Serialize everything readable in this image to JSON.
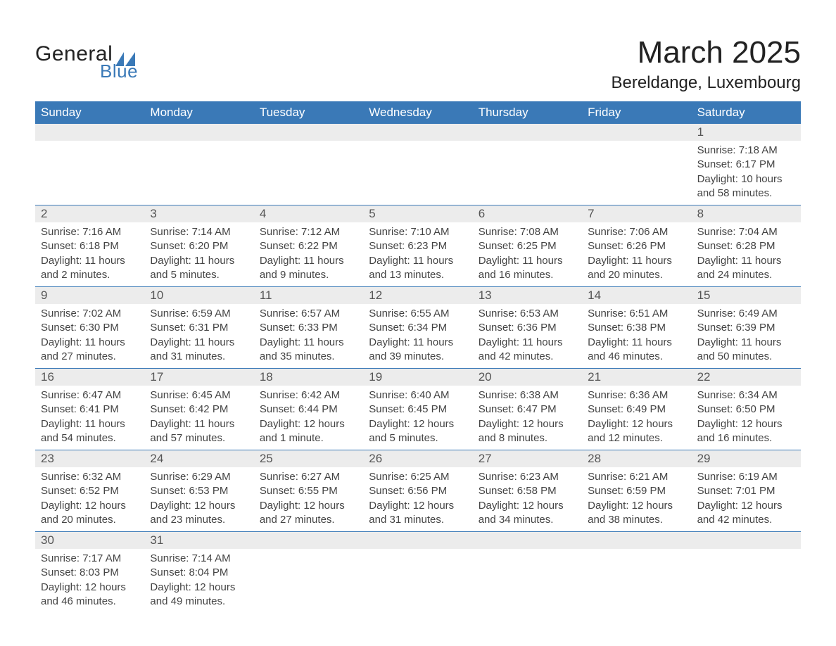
{
  "brand": {
    "text_general": "General",
    "text_blue": "Blue",
    "logo_color": "#3a79b7"
  },
  "title": {
    "month": "March 2025",
    "location": "Bereldange, Luxembourg",
    "month_fontsize": 44,
    "location_fontsize": 24
  },
  "colors": {
    "header_bg": "#3a79b7",
    "header_text": "#ffffff",
    "daynum_bg": "#ececec",
    "daynum_text": "#555555",
    "body_text": "#444444",
    "row_border": "#3a79b7",
    "page_bg": "#ffffff"
  },
  "layout": {
    "columns": 7,
    "weeks": 6
  },
  "weekdays": [
    "Sunday",
    "Monday",
    "Tuesday",
    "Wednesday",
    "Thursday",
    "Friday",
    "Saturday"
  ],
  "weeks": [
    {
      "daynums": [
        "",
        "",
        "",
        "",
        "",
        "",
        "1"
      ],
      "data": [
        {
          "sunrise": "",
          "sunset": "",
          "daylight": ""
        },
        {
          "sunrise": "",
          "sunset": "",
          "daylight": ""
        },
        {
          "sunrise": "",
          "sunset": "",
          "daylight": ""
        },
        {
          "sunrise": "",
          "sunset": "",
          "daylight": ""
        },
        {
          "sunrise": "",
          "sunset": "",
          "daylight": ""
        },
        {
          "sunrise": "",
          "sunset": "",
          "daylight": ""
        },
        {
          "sunrise": "Sunrise: 7:18 AM",
          "sunset": "Sunset: 6:17 PM",
          "daylight": "Daylight: 10 hours and 58 minutes."
        }
      ]
    },
    {
      "daynums": [
        "2",
        "3",
        "4",
        "5",
        "6",
        "7",
        "8"
      ],
      "data": [
        {
          "sunrise": "Sunrise: 7:16 AM",
          "sunset": "Sunset: 6:18 PM",
          "daylight": "Daylight: 11 hours and 2 minutes."
        },
        {
          "sunrise": "Sunrise: 7:14 AM",
          "sunset": "Sunset: 6:20 PM",
          "daylight": "Daylight: 11 hours and 5 minutes."
        },
        {
          "sunrise": "Sunrise: 7:12 AM",
          "sunset": "Sunset: 6:22 PM",
          "daylight": "Daylight: 11 hours and 9 minutes."
        },
        {
          "sunrise": "Sunrise: 7:10 AM",
          "sunset": "Sunset: 6:23 PM",
          "daylight": "Daylight: 11 hours and 13 minutes."
        },
        {
          "sunrise": "Sunrise: 7:08 AM",
          "sunset": "Sunset: 6:25 PM",
          "daylight": "Daylight: 11 hours and 16 minutes."
        },
        {
          "sunrise": "Sunrise: 7:06 AM",
          "sunset": "Sunset: 6:26 PM",
          "daylight": "Daylight: 11 hours and 20 minutes."
        },
        {
          "sunrise": "Sunrise: 7:04 AM",
          "sunset": "Sunset: 6:28 PM",
          "daylight": "Daylight: 11 hours and 24 minutes."
        }
      ]
    },
    {
      "daynums": [
        "9",
        "10",
        "11",
        "12",
        "13",
        "14",
        "15"
      ],
      "data": [
        {
          "sunrise": "Sunrise: 7:02 AM",
          "sunset": "Sunset: 6:30 PM",
          "daylight": "Daylight: 11 hours and 27 minutes."
        },
        {
          "sunrise": "Sunrise: 6:59 AM",
          "sunset": "Sunset: 6:31 PM",
          "daylight": "Daylight: 11 hours and 31 minutes."
        },
        {
          "sunrise": "Sunrise: 6:57 AM",
          "sunset": "Sunset: 6:33 PM",
          "daylight": "Daylight: 11 hours and 35 minutes."
        },
        {
          "sunrise": "Sunrise: 6:55 AM",
          "sunset": "Sunset: 6:34 PM",
          "daylight": "Daylight: 11 hours and 39 minutes."
        },
        {
          "sunrise": "Sunrise: 6:53 AM",
          "sunset": "Sunset: 6:36 PM",
          "daylight": "Daylight: 11 hours and 42 minutes."
        },
        {
          "sunrise": "Sunrise: 6:51 AM",
          "sunset": "Sunset: 6:38 PM",
          "daylight": "Daylight: 11 hours and 46 minutes."
        },
        {
          "sunrise": "Sunrise: 6:49 AM",
          "sunset": "Sunset: 6:39 PM",
          "daylight": "Daylight: 11 hours and 50 minutes."
        }
      ]
    },
    {
      "daynums": [
        "16",
        "17",
        "18",
        "19",
        "20",
        "21",
        "22"
      ],
      "data": [
        {
          "sunrise": "Sunrise: 6:47 AM",
          "sunset": "Sunset: 6:41 PM",
          "daylight": "Daylight: 11 hours and 54 minutes."
        },
        {
          "sunrise": "Sunrise: 6:45 AM",
          "sunset": "Sunset: 6:42 PM",
          "daylight": "Daylight: 11 hours and 57 minutes."
        },
        {
          "sunrise": "Sunrise: 6:42 AM",
          "sunset": "Sunset: 6:44 PM",
          "daylight": "Daylight: 12 hours and 1 minute."
        },
        {
          "sunrise": "Sunrise: 6:40 AM",
          "sunset": "Sunset: 6:45 PM",
          "daylight": "Daylight: 12 hours and 5 minutes."
        },
        {
          "sunrise": "Sunrise: 6:38 AM",
          "sunset": "Sunset: 6:47 PM",
          "daylight": "Daylight: 12 hours and 8 minutes."
        },
        {
          "sunrise": "Sunrise: 6:36 AM",
          "sunset": "Sunset: 6:49 PM",
          "daylight": "Daylight: 12 hours and 12 minutes."
        },
        {
          "sunrise": "Sunrise: 6:34 AM",
          "sunset": "Sunset: 6:50 PM",
          "daylight": "Daylight: 12 hours and 16 minutes."
        }
      ]
    },
    {
      "daynums": [
        "23",
        "24",
        "25",
        "26",
        "27",
        "28",
        "29"
      ],
      "data": [
        {
          "sunrise": "Sunrise: 6:32 AM",
          "sunset": "Sunset: 6:52 PM",
          "daylight": "Daylight: 12 hours and 20 minutes."
        },
        {
          "sunrise": "Sunrise: 6:29 AM",
          "sunset": "Sunset: 6:53 PM",
          "daylight": "Daylight: 12 hours and 23 minutes."
        },
        {
          "sunrise": "Sunrise: 6:27 AM",
          "sunset": "Sunset: 6:55 PM",
          "daylight": "Daylight: 12 hours and 27 minutes."
        },
        {
          "sunrise": "Sunrise: 6:25 AM",
          "sunset": "Sunset: 6:56 PM",
          "daylight": "Daylight: 12 hours and 31 minutes."
        },
        {
          "sunrise": "Sunrise: 6:23 AM",
          "sunset": "Sunset: 6:58 PM",
          "daylight": "Daylight: 12 hours and 34 minutes."
        },
        {
          "sunrise": "Sunrise: 6:21 AM",
          "sunset": "Sunset: 6:59 PM",
          "daylight": "Daylight: 12 hours and 38 minutes."
        },
        {
          "sunrise": "Sunrise: 6:19 AM",
          "sunset": "Sunset: 7:01 PM",
          "daylight": "Daylight: 12 hours and 42 minutes."
        }
      ]
    },
    {
      "daynums": [
        "30",
        "31",
        "",
        "",
        "",
        "",
        ""
      ],
      "data": [
        {
          "sunrise": "Sunrise: 7:17 AM",
          "sunset": "Sunset: 8:03 PM",
          "daylight": "Daylight: 12 hours and 46 minutes."
        },
        {
          "sunrise": "Sunrise: 7:14 AM",
          "sunset": "Sunset: 8:04 PM",
          "daylight": "Daylight: 12 hours and 49 minutes."
        },
        {
          "sunrise": "",
          "sunset": "",
          "daylight": ""
        },
        {
          "sunrise": "",
          "sunset": "",
          "daylight": ""
        },
        {
          "sunrise": "",
          "sunset": "",
          "daylight": ""
        },
        {
          "sunrise": "",
          "sunset": "",
          "daylight": ""
        },
        {
          "sunrise": "",
          "sunset": "",
          "daylight": ""
        }
      ]
    }
  ]
}
